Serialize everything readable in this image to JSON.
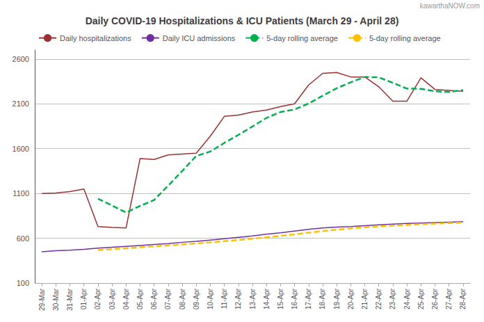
{
  "chart_data": {
    "type": "line",
    "title": "Daily COVID-19 Hospitalizations & ICU Patients (March 29 - April 28)",
    "annotations": [
      "kawarthaNOW.com"
    ],
    "categories": [
      "29-Mar",
      "30-Mar",
      "31-Mar",
      "01-Apr",
      "02-Apr",
      "03-Apr",
      "04-Apr",
      "05-Apr",
      "06-Apr",
      "07-Apr",
      "08-Apr",
      "09-Apr",
      "10-Apr",
      "11-Apr",
      "12-Apr",
      "13-Apr",
      "14-Apr",
      "15-Apr",
      "16-Apr",
      "17-Apr",
      "18-Apr",
      "19-Apr",
      "20-Apr",
      "21-Apr",
      "22-Apr",
      "23-Apr",
      "24-Apr",
      "25-Apr",
      "26-Apr",
      "27-Apr",
      "28-Apr"
    ],
    "series": [
      {
        "name": "Daily hospitalizations",
        "color": "#9B3030",
        "line_style": "solid",
        "values": [
          1100,
          1105,
          1120,
          1150,
          730,
          720,
          715,
          1490,
          1480,
          1530,
          1540,
          1550,
          1740,
          1960,
          1975,
          2010,
          2030,
          2070,
          2100,
          2310,
          2440,
          2450,
          2400,
          2400,
          2290,
          2130,
          2130,
          2390,
          2260,
          2250,
          2240
        ]
      },
      {
        "name": "Daily ICU admissions",
        "color": "#7030A0",
        "line_style": "solid",
        "values": [
          450,
          460,
          467,
          476,
          490,
          500,
          510,
          520,
          530,
          540,
          555,
          565,
          580,
          595,
          610,
          625,
          645,
          660,
          680,
          700,
          715,
          725,
          730,
          740,
          750,
          758,
          765,
          770,
          775,
          780,
          785
        ]
      },
      {
        "name": "5-day rolling average",
        "color": "#00B050",
        "line_style": "dashed",
        "values": [
          null,
          null,
          null,
          null,
          1041,
          965,
          887,
          961,
          1027,
          1187,
          1351,
          1518,
          1568,
          1664,
          1753,
          1847,
          1943,
          2009,
          2037,
          2104,
          2190,
          2274,
          2340,
          2400,
          2396,
          2334,
          2270,
          2268,
          2240,
          2232,
          2254
        ]
      },
      {
        "name": "5-day rolling average",
        "color": "#FFC000",
        "line_style": "dashed",
        "values": [
          null,
          null,
          null,
          null,
          468.6,
          478.6,
          488.6,
          499.2,
          510,
          520,
          531,
          542,
          554,
          567,
          581,
          595,
          611,
          627,
          644,
          662,
          680,
          696,
          710,
          722,
          732,
          740.6,
          748.6,
          756.6,
          763.6,
          769.6,
          775
        ]
      }
    ],
    "ylim": [
      100,
      2700
    ],
    "yticks": [
      100,
      600,
      1100,
      1600,
      2100,
      2600
    ],
    "grid": true,
    "legend": "upper left"
  }
}
